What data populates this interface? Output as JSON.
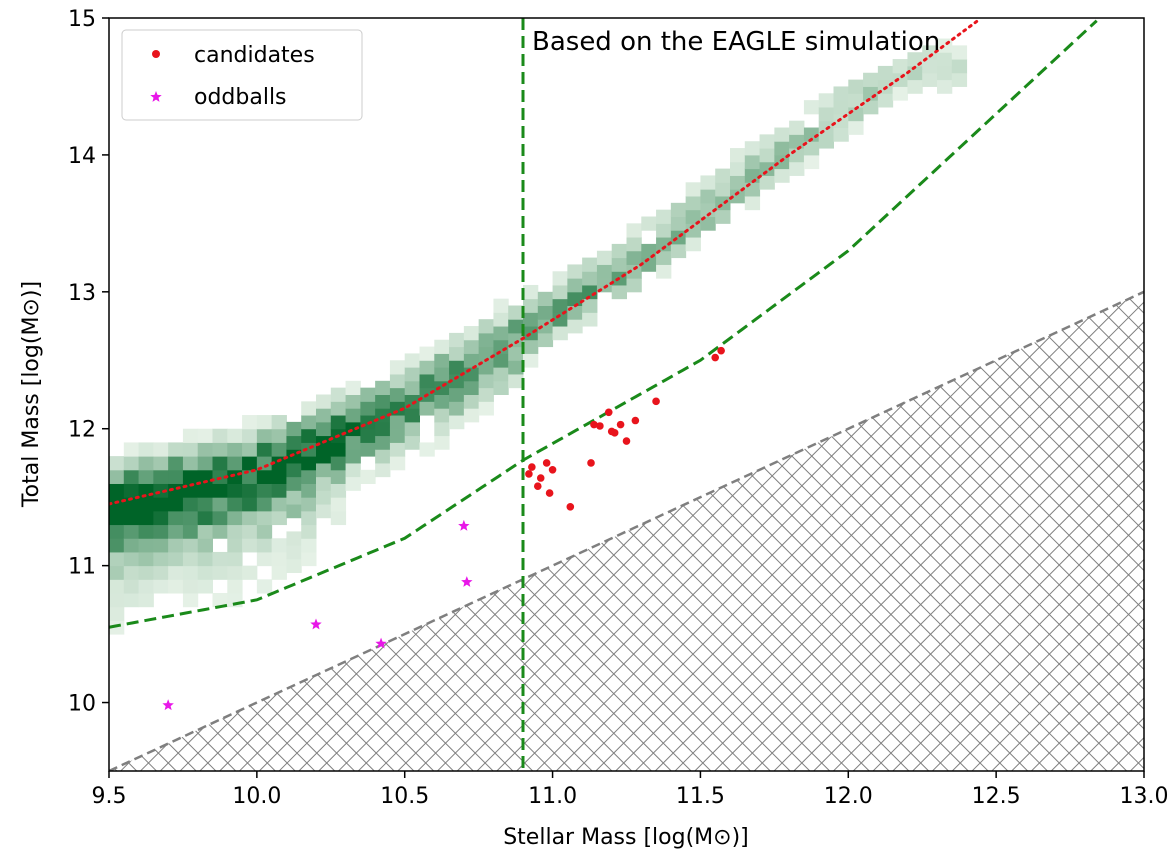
{
  "chart_data": {
    "type": "scatter",
    "xlabel": "Stellar Mass [log(M⊙)]",
    "ylabel": "Total Mass [log(M⊙)]",
    "xlim": [
      9.5,
      13.0
    ],
    "ylim": [
      9.5,
      15.0
    ],
    "xticks": [
      9.5,
      10.0,
      10.5,
      11.0,
      11.5,
      12.0,
      12.5,
      13.0
    ],
    "xtick_labels": [
      "9.5",
      "10.0",
      "10.5",
      "11.0",
      "11.5",
      "12.0",
      "12.5",
      "13.0"
    ],
    "yticks": [
      10,
      11,
      12,
      13,
      14,
      15
    ],
    "ytick_labels": [
      "10",
      "11",
      "12",
      "13",
      "14",
      "15"
    ],
    "grid": false,
    "legend_position": "top-left",
    "annotation": "Based on the EAGLE simulation",
    "vertical_line": {
      "x": 10.9,
      "color": "#1a8a1a",
      "style": "dashed"
    },
    "hatched_region": {
      "lower_bound_line": [
        [
          9.5,
          9.5
        ],
        [
          13.0,
          13.0
        ]
      ],
      "pattern": "crosshatch",
      "color": "#7f7f7f"
    },
    "curves": [
      {
        "style": "dotted",
        "color": "#e8141c",
        "points": [
          [
            9.5,
            11.45
          ],
          [
            10.0,
            11.7
          ],
          [
            10.5,
            12.15
          ],
          [
            10.9,
            12.66
          ],
          [
            11.3,
            13.2
          ],
          [
            11.8,
            14.0
          ],
          [
            12.2,
            14.6
          ],
          [
            12.45,
            15.0
          ]
        ]
      },
      {
        "style": "dashed",
        "color": "#1a8a1a",
        "points": [
          [
            9.5,
            10.55
          ],
          [
            10.0,
            10.75
          ],
          [
            10.5,
            11.2
          ],
          [
            10.9,
            11.77
          ],
          [
            11.5,
            12.5
          ],
          [
            12.0,
            13.3
          ],
          [
            12.5,
            14.3
          ],
          [
            12.85,
            15.0
          ]
        ]
      }
    ],
    "series": [
      {
        "name": "candidates",
        "marker": "circle",
        "color": "#e8141c",
        "x": [
          10.93,
          10.95,
          10.96,
          10.98,
          10.99,
          11.0,
          11.06,
          11.13,
          11.14,
          11.16,
          11.19,
          11.2,
          11.21,
          11.23,
          11.25,
          11.28,
          11.35,
          11.55,
          11.57,
          10.92
        ],
        "y": [
          11.72,
          11.58,
          11.64,
          11.75,
          11.53,
          11.7,
          11.43,
          11.75,
          12.03,
          12.02,
          12.12,
          11.98,
          11.97,
          12.03,
          11.91,
          12.06,
          12.2,
          12.52,
          12.57,
          11.67
        ]
      },
      {
        "name": "oddballs",
        "marker": "star",
        "color": "#e817e8",
        "x": [
          9.7,
          10.2,
          10.42,
          10.7,
          10.71
        ],
        "y": [
          9.98,
          10.57,
          10.43,
          11.29,
          10.88
        ]
      }
    ],
    "histogram2d": {
      "colormap": "Greens",
      "ridge": [
        [
          9.5,
          11.45
        ],
        [
          10.0,
          11.7
        ],
        [
          10.5,
          12.15
        ],
        [
          10.9,
          12.66
        ],
        [
          11.3,
          13.2
        ],
        [
          11.8,
          14.0
        ],
        [
          12.2,
          14.6
        ]
      ]
    }
  }
}
